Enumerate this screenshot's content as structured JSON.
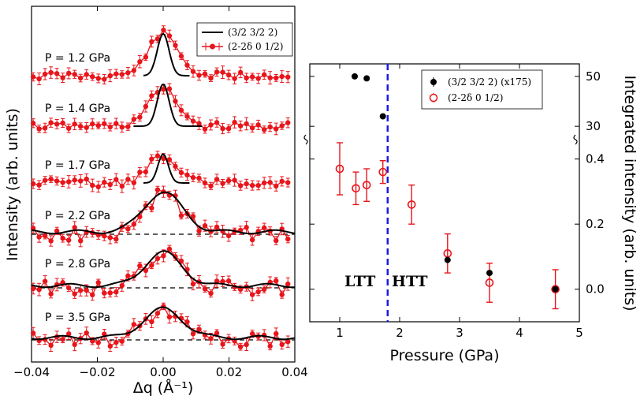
{
  "chart_data": [
    {
      "type": "line",
      "panel": "left",
      "xlabel": "Δq (Å⁻¹)",
      "ylabel": "Intensity (arb. units)",
      "xlim": [
        -0.04,
        0.04
      ],
      "xticks": [
        "−0.04",
        "−0.02",
        "0.00",
        "0.02",
        "0.04"
      ],
      "legend": {
        "position": "top-right",
        "entries": [
          "(3/2 3/2 2)",
          "(2-2δ 0 1/2)"
        ]
      },
      "series": [
        {
          "name": "P = 1.2 GPa",
          "fit_width": 0.0018,
          "fit_peak": 0.95,
          "data_peak": 0.95,
          "data_width": 0.0045,
          "has_baseline": false
        },
        {
          "name": "P = 1.4 GPa",
          "fit_width": 0.0018,
          "fit_peak": 0.95,
          "data_peak": 0.83,
          "data_width": 0.0045,
          "has_baseline": false
        },
        {
          "name": "P = 1.7 GPa",
          "fit_width": 0.0016,
          "fit_peak": 0.65,
          "data_peak": 0.62,
          "data_width": 0.0045,
          "has_baseline": false
        },
        {
          "name": "P = 2.2 GPa",
          "fit_width": 0.0058,
          "fit_peak": 0.9,
          "data_peak": 0.9,
          "data_width": 0.0058,
          "has_baseline": true
        },
        {
          "name": "P = 2.8 GPa",
          "fit_width": 0.0055,
          "fit_peak": 0.75,
          "data_peak": 0.8,
          "data_width": 0.0055,
          "has_baseline": true
        },
        {
          "name": "P = 3.5 GPa",
          "fit_width": 0.0058,
          "fit_peak": 0.65,
          "data_peak": 0.65,
          "data_width": 0.0058,
          "has_baseline": true
        }
      ]
    },
    {
      "type": "scatter",
      "panel": "right",
      "xlabel": "Pressure (GPa)",
      "ylabel": "Integrated intensity (arb. units)",
      "xlim": [
        0.5,
        5
      ],
      "xticks": [
        "1",
        "2",
        "3",
        "4",
        "5"
      ],
      "ylim_lower": [
        -0.1,
        0.45
      ],
      "yticks_lower": [
        "0.0",
        "0.2",
        "0.4"
      ],
      "ylim_upper": [
        25,
        55
      ],
      "yticks_upper": [
        "30",
        "50"
      ],
      "transition_pressure": 1.8,
      "phase_labels": [
        "LTT",
        "HTT"
      ],
      "legend": {
        "position": "top-right",
        "entries": [
          "(3/2 3/2 2) (x175)",
          "(2-2δ 0 1/2)"
        ]
      },
      "series": [
        {
          "name": "(3/2 3/2 2) (x175)",
          "marker": "filled",
          "points_upper": [
            {
              "x": 1.25,
              "y": 50
            },
            {
              "x": 1.45,
              "y": 49.2
            },
            {
              "x": 1.72,
              "y": 34
            }
          ],
          "points_lower": [
            {
              "x": 2.8,
              "y": 0.09
            },
            {
              "x": 3.5,
              "y": 0.05
            },
            {
              "x": 4.6,
              "y": 0.0
            }
          ]
        },
        {
          "name": "(2-2δ 0 1/2)",
          "marker": "open",
          "points": [
            {
              "x": 1.0,
              "y": 0.37,
              "err": 0.08
            },
            {
              "x": 1.27,
              "y": 0.31,
              "err": 0.05
            },
            {
              "x": 1.45,
              "y": 0.32,
              "err": 0.05
            },
            {
              "x": 1.72,
              "y": 0.36,
              "err": 0.035
            },
            {
              "x": 2.2,
              "y": 0.26,
              "err": 0.06
            },
            {
              "x": 2.8,
              "y": 0.11,
              "err": 0.06
            },
            {
              "x": 3.5,
              "y": 0.02,
              "err": 0.06
            },
            {
              "x": 4.6,
              "y": 0.0,
              "err": 0.06
            }
          ]
        }
      ]
    }
  ],
  "colors": {
    "data_red": "#e8151b",
    "fit_black": "#000000",
    "transition_blue": "#1a1ae6"
  }
}
